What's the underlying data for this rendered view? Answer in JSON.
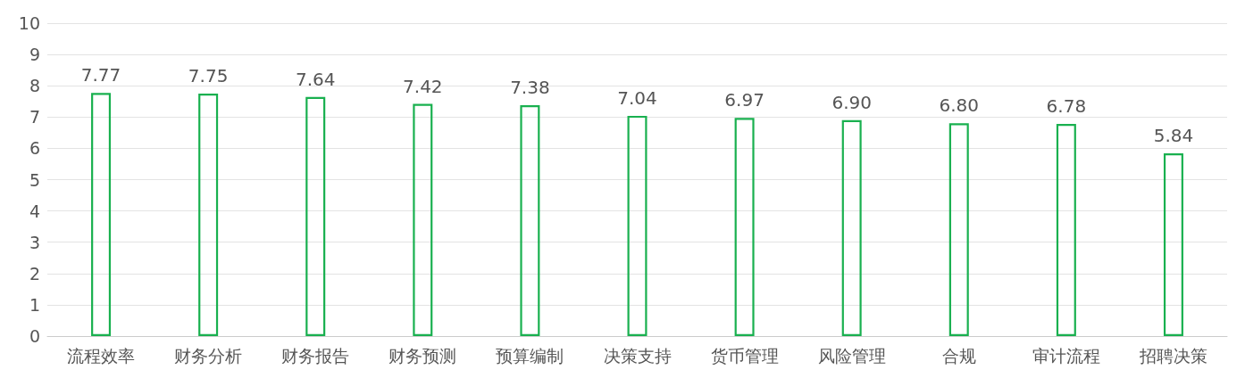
{
  "chart_data": {
    "type": "bar",
    "categories": [
      "流程效率",
      "财务分析",
      "财务报告",
      "财务预测",
      "预算编制",
      "决策支持",
      "货币管理",
      "风险管理",
      "合规",
      "审计流程",
      "招聘决策"
    ],
    "values": [
      7.77,
      7.75,
      7.64,
      7.42,
      7.38,
      7.04,
      6.97,
      6.9,
      6.8,
      6.78,
      5.84
    ],
    "value_labels": [
      "7.77",
      "7.75",
      "7.64",
      "7.42",
      "7.38",
      "7.04",
      "6.97",
      "6.90",
      "6.80",
      "6.78",
      "5.84"
    ],
    "color": "#19b04f",
    "ylim": [
      0,
      10
    ],
    "yticks": [
      0,
      1,
      2,
      3,
      4,
      5,
      6,
      7,
      8,
      9,
      10
    ],
    "grid": "y"
  }
}
